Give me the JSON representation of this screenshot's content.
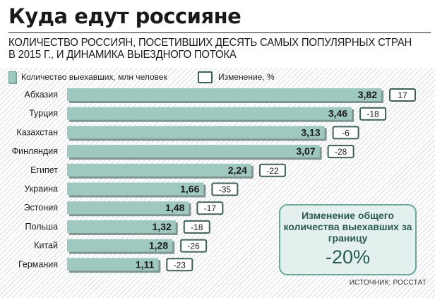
{
  "title": "Куда едут россияне",
  "subtitle": "КОЛИЧЕСТВО РОССИЯН, ПОСЕТИВШИХ ДЕСЯТЬ САМЫХ ПОПУЛЯРНЫХ СТРАН В 2015 Г., И ДИНАМИКА ВЫЕЗДНОГО ПОТОКА",
  "legend": {
    "bars_label": "Количество выехавших, млн человек",
    "change_label": "Изменение, %"
  },
  "colors": {
    "bar_fill": "#9fc9c0",
    "bar_shadow": "#7f9590",
    "change_box_border": "#3f5f59",
    "info_box_fill": "#e3f0ed",
    "info_box_border": "#6aa79b"
  },
  "chart_data": {
    "type": "bar",
    "orientation": "horizontal",
    "categories": [
      "Абхазия",
      "Турция",
      "Казахстан",
      "Финляндия",
      "Египет",
      "Украина",
      "Эстония",
      "Польша",
      "Китай",
      "Германия"
    ],
    "series": [
      {
        "name": "Количество выехавших, млн человек",
        "values": [
          3.82,
          3.46,
          3.13,
          3.07,
          2.24,
          1.66,
          1.48,
          1.32,
          1.28,
          1.11
        ]
      },
      {
        "name": "Изменение, %",
        "values": [
          17,
          -18,
          -6,
          -28,
          -22,
          -35,
          -17,
          -18,
          -26,
          -23
        ]
      }
    ],
    "value_labels": [
      "3,82",
      "3,46",
      "3,13",
      "3,07",
      "2,24",
      "1,66",
      "1,48",
      "1,32",
      "1,28",
      "1,11"
    ],
    "change_labels": [
      "17",
      "-18",
      "-6",
      "-28",
      "-22",
      "-35",
      "-17",
      "-18",
      "-26",
      "-23"
    ],
    "xlim": [
      0,
      3.82
    ]
  },
  "summary_box": {
    "text": "Изменение общего количества выехавших за границу",
    "value": "-20%"
  },
  "source": "ИСТОЧНИК: РОССТАТ"
}
